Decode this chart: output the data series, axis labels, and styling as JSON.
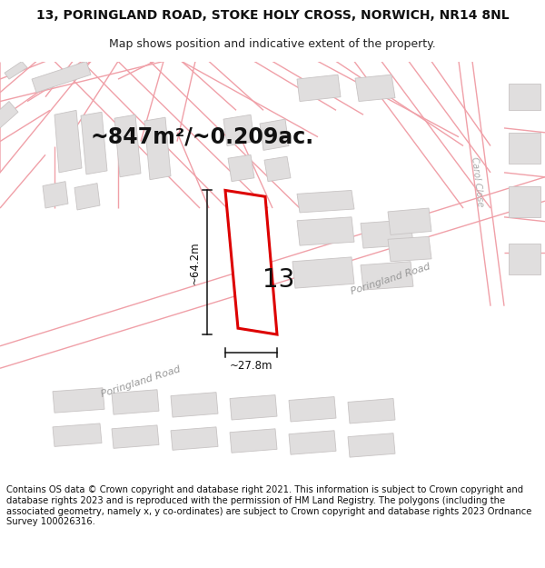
{
  "title_line1": "13, PORINGLAND ROAD, STOKE HOLY CROSS, NORWICH, NR14 8NL",
  "title_line2": "Map shows position and indicative extent of the property.",
  "area_text": "~847m²/~0.209ac.",
  "width_label": "~27.8m",
  "height_label": "~64.2m",
  "property_number": "13",
  "road_label_bottom": "Poringland Road",
  "road_label_right": "Poringland Road",
  "road_label_carol": "Carol Close",
  "footer_text": "Contains OS data © Crown copyright and database right 2021. This information is subject to Crown copyright and database rights 2023 and is reproduced with the permission of HM Land Registry. The polygons (including the associated geometry, namely x, y co-ordinates) are subject to Crown copyright and database rights 2023 Ordnance Survey 100026316.",
  "bg_color": "#ffffff",
  "map_bg": "#f7f5f5",
  "plot_outline_color": "#dd0000",
  "road_line_color": "#f0a0a8",
  "road_line_color2": "#d0c0c0",
  "building_fill": "#e0dede",
  "building_stroke": "#c8c4c4",
  "dimension_color": "#111111",
  "title_fontsize": 10,
  "subtitle_fontsize": 9,
  "area_fontsize": 17,
  "dim_label_fontsize": 8.5,
  "road_label_fontsize": 8,
  "footer_fontsize": 7.2,
  "property_number_fontsize": 20
}
